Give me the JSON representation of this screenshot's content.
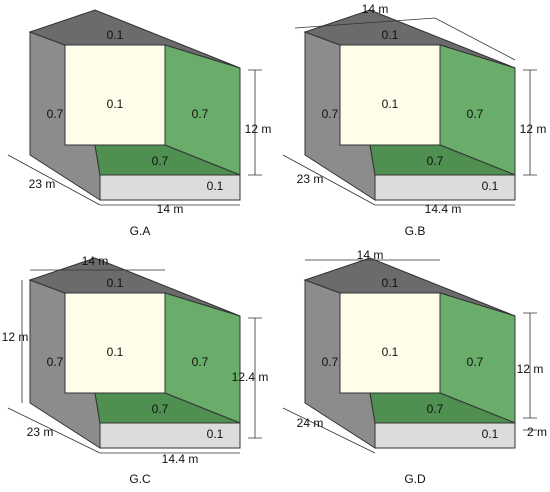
{
  "panels": [
    {
      "name": "G.A",
      "faces": {
        "top": "0.1",
        "left": "0.7",
        "back": "0.1",
        "right": "0.7",
        "floor": "0.7",
        "front": "0.1"
      },
      "dimensions": [
        "23 m",
        "14 m",
        "12 m"
      ]
    },
    {
      "name": "G.B",
      "faces": {
        "top": "0.1",
        "left": "0.7",
        "back": "0.1",
        "right": "0.7",
        "floor": "0.7",
        "front": "0.1"
      },
      "dimensions": [
        "14 m",
        "23 m",
        "14.4 m",
        "12 m"
      ]
    },
    {
      "name": "G.C",
      "faces": {
        "top": "0.1",
        "left": "0.7",
        "back": "0.1",
        "right": "0.7",
        "floor": "0.7",
        "front": "0.1"
      },
      "dimensions": [
        "14 m",
        "12 m",
        "23 m",
        "14.4 m",
        "12.4 m"
      ]
    },
    {
      "name": "G.D",
      "faces": {
        "top": "0.1",
        "left": "0.7",
        "back": "0.1",
        "right": "0.7",
        "floor": "0.7",
        "front": "0.1"
      },
      "dimensions": [
        "14 m",
        "24 m",
        "12 m",
        "2 m"
      ]
    }
  ]
}
